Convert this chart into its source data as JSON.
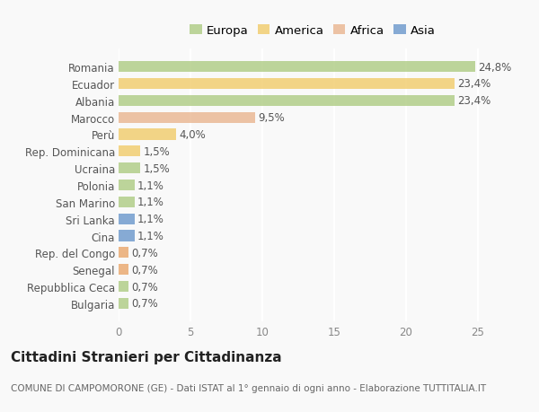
{
  "categories": [
    "Bulgaria",
    "Repubblica Ceca",
    "Senegal",
    "Rep. del Congo",
    "Cina",
    "Sri Lanka",
    "San Marino",
    "Polonia",
    "Ucraina",
    "Rep. Dominicana",
    "Perù",
    "Marocco",
    "Albania",
    "Ecuador",
    "Romania"
  ],
  "values": [
    0.7,
    0.7,
    0.7,
    0.7,
    1.1,
    1.1,
    1.1,
    1.1,
    1.5,
    1.5,
    4.0,
    9.5,
    23.4,
    23.4,
    24.8
  ],
  "colors": [
    "#a8c87a",
    "#a8c87a",
    "#e8a060",
    "#e8a060",
    "#6090c8",
    "#6090c8",
    "#a8c87a",
    "#a8c87a",
    "#a8c87a",
    "#f0c860",
    "#f0c860",
    "#e8b088",
    "#a8c87a",
    "#f0c860",
    "#a8c87a"
  ],
  "labels": [
    "0,7%",
    "0,7%",
    "0,7%",
    "0,7%",
    "1,1%",
    "1,1%",
    "1,1%",
    "1,1%",
    "1,5%",
    "1,5%",
    "4,0%",
    "9,5%",
    "23,4%",
    "23,4%",
    "24,8%"
  ],
  "legend_labels": [
    "Europa",
    "America",
    "Africa",
    "Asia"
  ],
  "legend_colors": [
    "#a8c87a",
    "#f0c860",
    "#e8b088",
    "#6090c8"
  ],
  "title": "Cittadini Stranieri per Cittadinanza",
  "subtitle": "COMUNE DI CAMPOMORONE (GE) - Dati ISTAT al 1° gennaio di ogni anno - Elaborazione TUTTITALIA.IT",
  "xlim": [
    0,
    27
  ],
  "background_color": "#f9f9f9",
  "grid_color": "#ffffff",
  "bar_height": 0.65,
  "title_fontsize": 11,
  "subtitle_fontsize": 7.5,
  "label_fontsize": 8.5,
  "tick_fontsize": 8.5,
  "legend_fontsize": 9.5
}
